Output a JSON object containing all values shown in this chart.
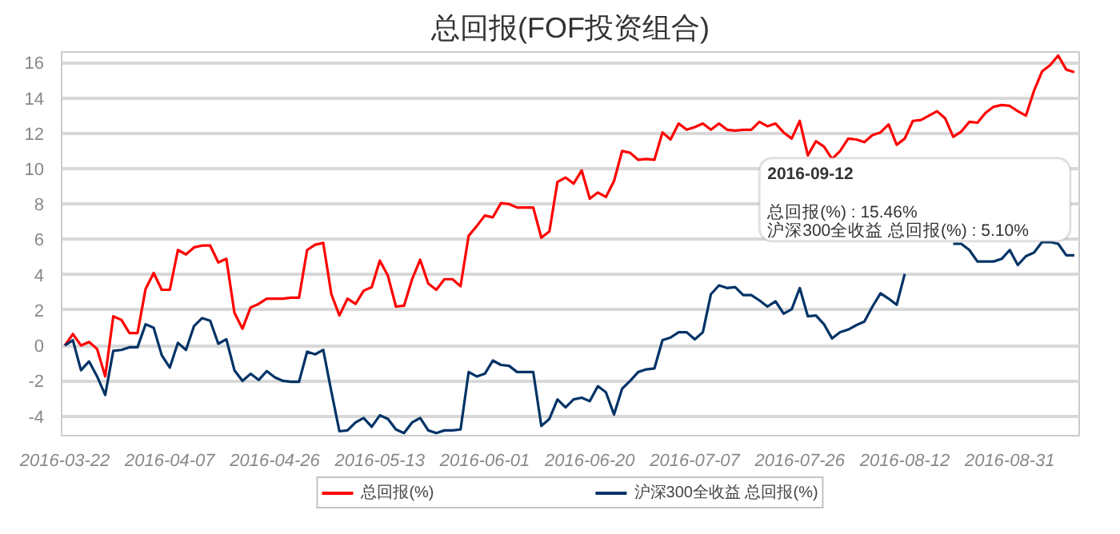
{
  "chart_data": {
    "type": "line",
    "title": "总回报(FOF投资组合)",
    "categories": [
      "2016-03-22",
      null,
      null,
      null,
      null,
      null,
      null,
      null,
      null,
      null,
      null,
      null,
      null,
      "2016-04-07",
      null,
      null,
      null,
      null,
      null,
      null,
      null,
      null,
      null,
      null,
      null,
      null,
      "2016-04-26",
      null,
      null,
      null,
      null,
      null,
      null,
      null,
      null,
      null,
      null,
      null,
      null,
      "2016-05-13",
      null,
      null,
      null,
      null,
      null,
      null,
      null,
      null,
      null,
      null,
      null,
      null,
      "2016-06-01",
      null,
      null,
      null,
      null,
      null,
      null,
      null,
      null,
      null,
      null,
      null,
      null,
      "2016-06-20",
      null,
      null,
      null,
      null,
      null,
      null,
      null,
      null,
      null,
      null,
      null,
      null,
      "2016-07-07",
      null,
      null,
      null,
      null,
      null,
      null,
      null,
      null,
      null,
      null,
      null,
      null,
      "2016-07-26",
      null,
      null,
      null,
      null,
      null,
      null,
      null,
      null,
      null,
      null,
      null,
      null,
      "2016-08-12",
      null,
      null,
      null,
      null,
      null,
      null,
      null,
      null,
      null,
      null,
      null,
      null,
      "2016-08-31",
      null,
      null,
      null,
      null,
      null,
      null,
      null,
      null
    ],
    "series": [
      {
        "name": "总回报(%)",
        "color": "#ff0000",
        "values": [
          0,
          0.65,
          0,
          0.2,
          -0.2,
          -1.75,
          1.65,
          1.45,
          0.7,
          0.7,
          3.2,
          4.1,
          3.15,
          3.15,
          5.4,
          5.15,
          5.55,
          5.65,
          5.65,
          4.7,
          4.9,
          1.85,
          0.95,
          2.15,
          2.35,
          2.65,
          2.65,
          2.65,
          2.7,
          2.7,
          5.4,
          5.7,
          5.8,
          2.9,
          1.7,
          2.65,
          2.35,
          3.1,
          3.3,
          4.8,
          3.95,
          2.2,
          2.25,
          3.75,
          4.85,
          3.5,
          3.15,
          3.75,
          3.75,
          3.35,
          6.2,
          6.75,
          7.35,
          7.25,
          8.05,
          8.0,
          7.8,
          7.8,
          7.8,
          6.1,
          6.45,
          9.25,
          9.5,
          9.15,
          9.9,
          8.3,
          8.65,
          8.4,
          9.3,
          11.0,
          10.9,
          10.5,
          10.55,
          10.5,
          12.05,
          11.65,
          12.55,
          12.2,
          12.35,
          12.55,
          12.2,
          12.55,
          12.2,
          12.15,
          12.2,
          12.2,
          12.65,
          12.4,
          12.55,
          12.05,
          11.7,
          12.7,
          10.75,
          11.55,
          11.25,
          10.55,
          11.0,
          11.7,
          11.65,
          11.5,
          11.9,
          12.05,
          12.5,
          11.35,
          11.7,
          12.7,
          12.75,
          13.0,
          13.25,
          12.85,
          11.8,
          12.1,
          12.65,
          12.6,
          13.15,
          13.5,
          13.6,
          13.55,
          13.25,
          13.0,
          14.4,
          15.5,
          15.85,
          16.4,
          15.6,
          15.46
        ]
      },
      {
        "name": "沪深300全收益 总回报(%)",
        "color": "#003366",
        "values": [
          0,
          0.3,
          -1.4,
          -0.9,
          -1.75,
          -2.8,
          -0.3,
          -0.25,
          -0.1,
          -0.1,
          1.2,
          1.0,
          -0.55,
          -1.25,
          0.15,
          -0.25,
          1.1,
          1.55,
          1.4,
          0.1,
          0.35,
          -1.4,
          -2.0,
          -1.6,
          -1.95,
          -1.45,
          -1.8,
          -2.0,
          -2.05,
          -2.05,
          -0.35,
          -0.5,
          -0.25,
          -2.6,
          -4.85,
          -4.8,
          -4.35,
          -4.1,
          -4.6,
          -3.95,
          -4.15,
          -4.75,
          -4.95,
          -4.35,
          -4.1,
          -4.8,
          -4.95,
          -4.8,
          -4.8,
          -4.75,
          -1.5,
          -1.75,
          -1.6,
          -0.85,
          -1.1,
          -1.15,
          -1.5,
          -1.5,
          -1.5,
          -4.55,
          -4.15,
          -3.05,
          -3.5,
          -3.05,
          -2.95,
          -3.15,
          -2.3,
          -2.65,
          -3.9,
          -2.45,
          -2.0,
          -1.5,
          -1.35,
          -1.3,
          0.3,
          0.45,
          0.75,
          0.75,
          0.35,
          0.75,
          2.9,
          3.4,
          3.25,
          3.3,
          2.85,
          2.85,
          2.55,
          2.2,
          2.5,
          1.8,
          2.05,
          3.25,
          1.65,
          1.7,
          1.2,
          0.4,
          0.75,
          0.9,
          1.15,
          1.35,
          2.2,
          2.95,
          2.65,
          2.3,
          4.05,
          null,
          null,
          null,
          null,
          null,
          5.75,
          5.75,
          5.4,
          4.75,
          4.75,
          4.75,
          4.9,
          5.4,
          4.55,
          5.05,
          5.25,
          5.85,
          5.85,
          5.75,
          5.1,
          5.1
        ]
      }
    ],
    "ylim": [
      -5.1,
      16.6
    ],
    "yticks": [
      -4,
      -2,
      0,
      2,
      4,
      6,
      8,
      10,
      12,
      14,
      16
    ],
    "grid": "y",
    "legend": "bottom",
    "annotations": [
      "2016-09-12\n\n总回报(%) : 15.46%\n沪深300全收益 总回报(%) : 5.10%"
    ]
  }
}
